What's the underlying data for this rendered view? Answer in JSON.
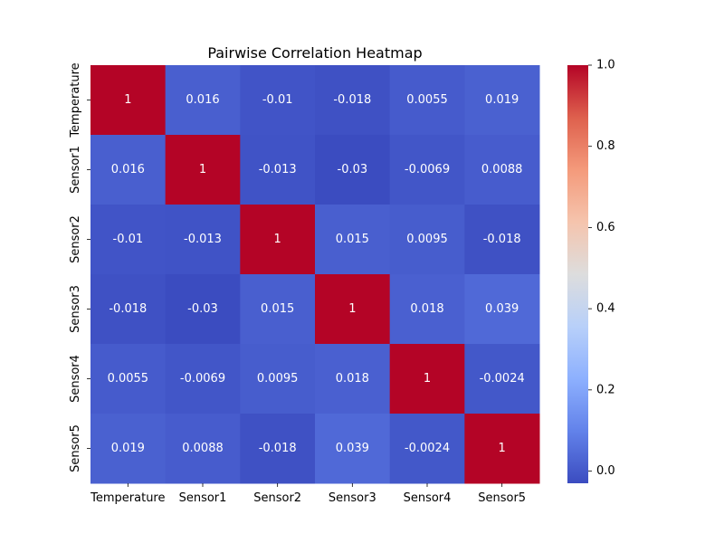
{
  "chart_data": {
    "type": "heatmap",
    "title": "Pairwise Correlation Heatmap",
    "rows": [
      "Temperature",
      "Sensor1",
      "Sensor2",
      "Sensor3",
      "Sensor4",
      "Sensor5"
    ],
    "cols": [
      "Temperature",
      "Sensor1",
      "Sensor2",
      "Sensor3",
      "Sensor4",
      "Sensor5"
    ],
    "values": [
      [
        1,
        0.016,
        -0.01,
        -0.018,
        0.0055,
        0.019
      ],
      [
        0.016,
        1,
        -0.013,
        -0.03,
        -0.0069,
        0.0088
      ],
      [
        -0.01,
        -0.013,
        1,
        0.015,
        0.0095,
        -0.018
      ],
      [
        -0.018,
        -0.03,
        0.015,
        1,
        0.018,
        0.039
      ],
      [
        0.0055,
        -0.0069,
        0.0095,
        0.018,
        1,
        -0.0024
      ],
      [
        0.019,
        0.0088,
        -0.018,
        0.039,
        -0.0024,
        1
      ]
    ],
    "labels": [
      [
        "1",
        "0.016",
        "-0.01",
        "-0.018",
        "0.0055",
        "0.019"
      ],
      [
        "0.016",
        "1",
        "-0.013",
        "-0.03",
        "-0.0069",
        "0.0088"
      ],
      [
        "-0.01",
        "-0.013",
        "1",
        "0.015",
        "0.0095",
        "-0.018"
      ],
      [
        "-0.018",
        "-0.03",
        "0.015",
        "1",
        "0.018",
        "0.039"
      ],
      [
        "0.0055",
        "-0.0069",
        "0.0095",
        "0.018",
        "1",
        "-0.0024"
      ],
      [
        "0.019",
        "0.0088",
        "-0.018",
        "0.039",
        "-0.0024",
        "1"
      ]
    ],
    "colormap": "coolwarm",
    "vmin": -0.03,
    "vmax": 1.0,
    "colorbar": {
      "ticks": [
        0.0,
        0.2,
        0.4,
        0.6,
        0.8,
        1.0
      ],
      "tick_labels": [
        "0.0",
        "0.2",
        "0.4",
        "0.6",
        "0.8",
        "1.0"
      ]
    },
    "grid": false,
    "legend": "colorbar-right"
  }
}
